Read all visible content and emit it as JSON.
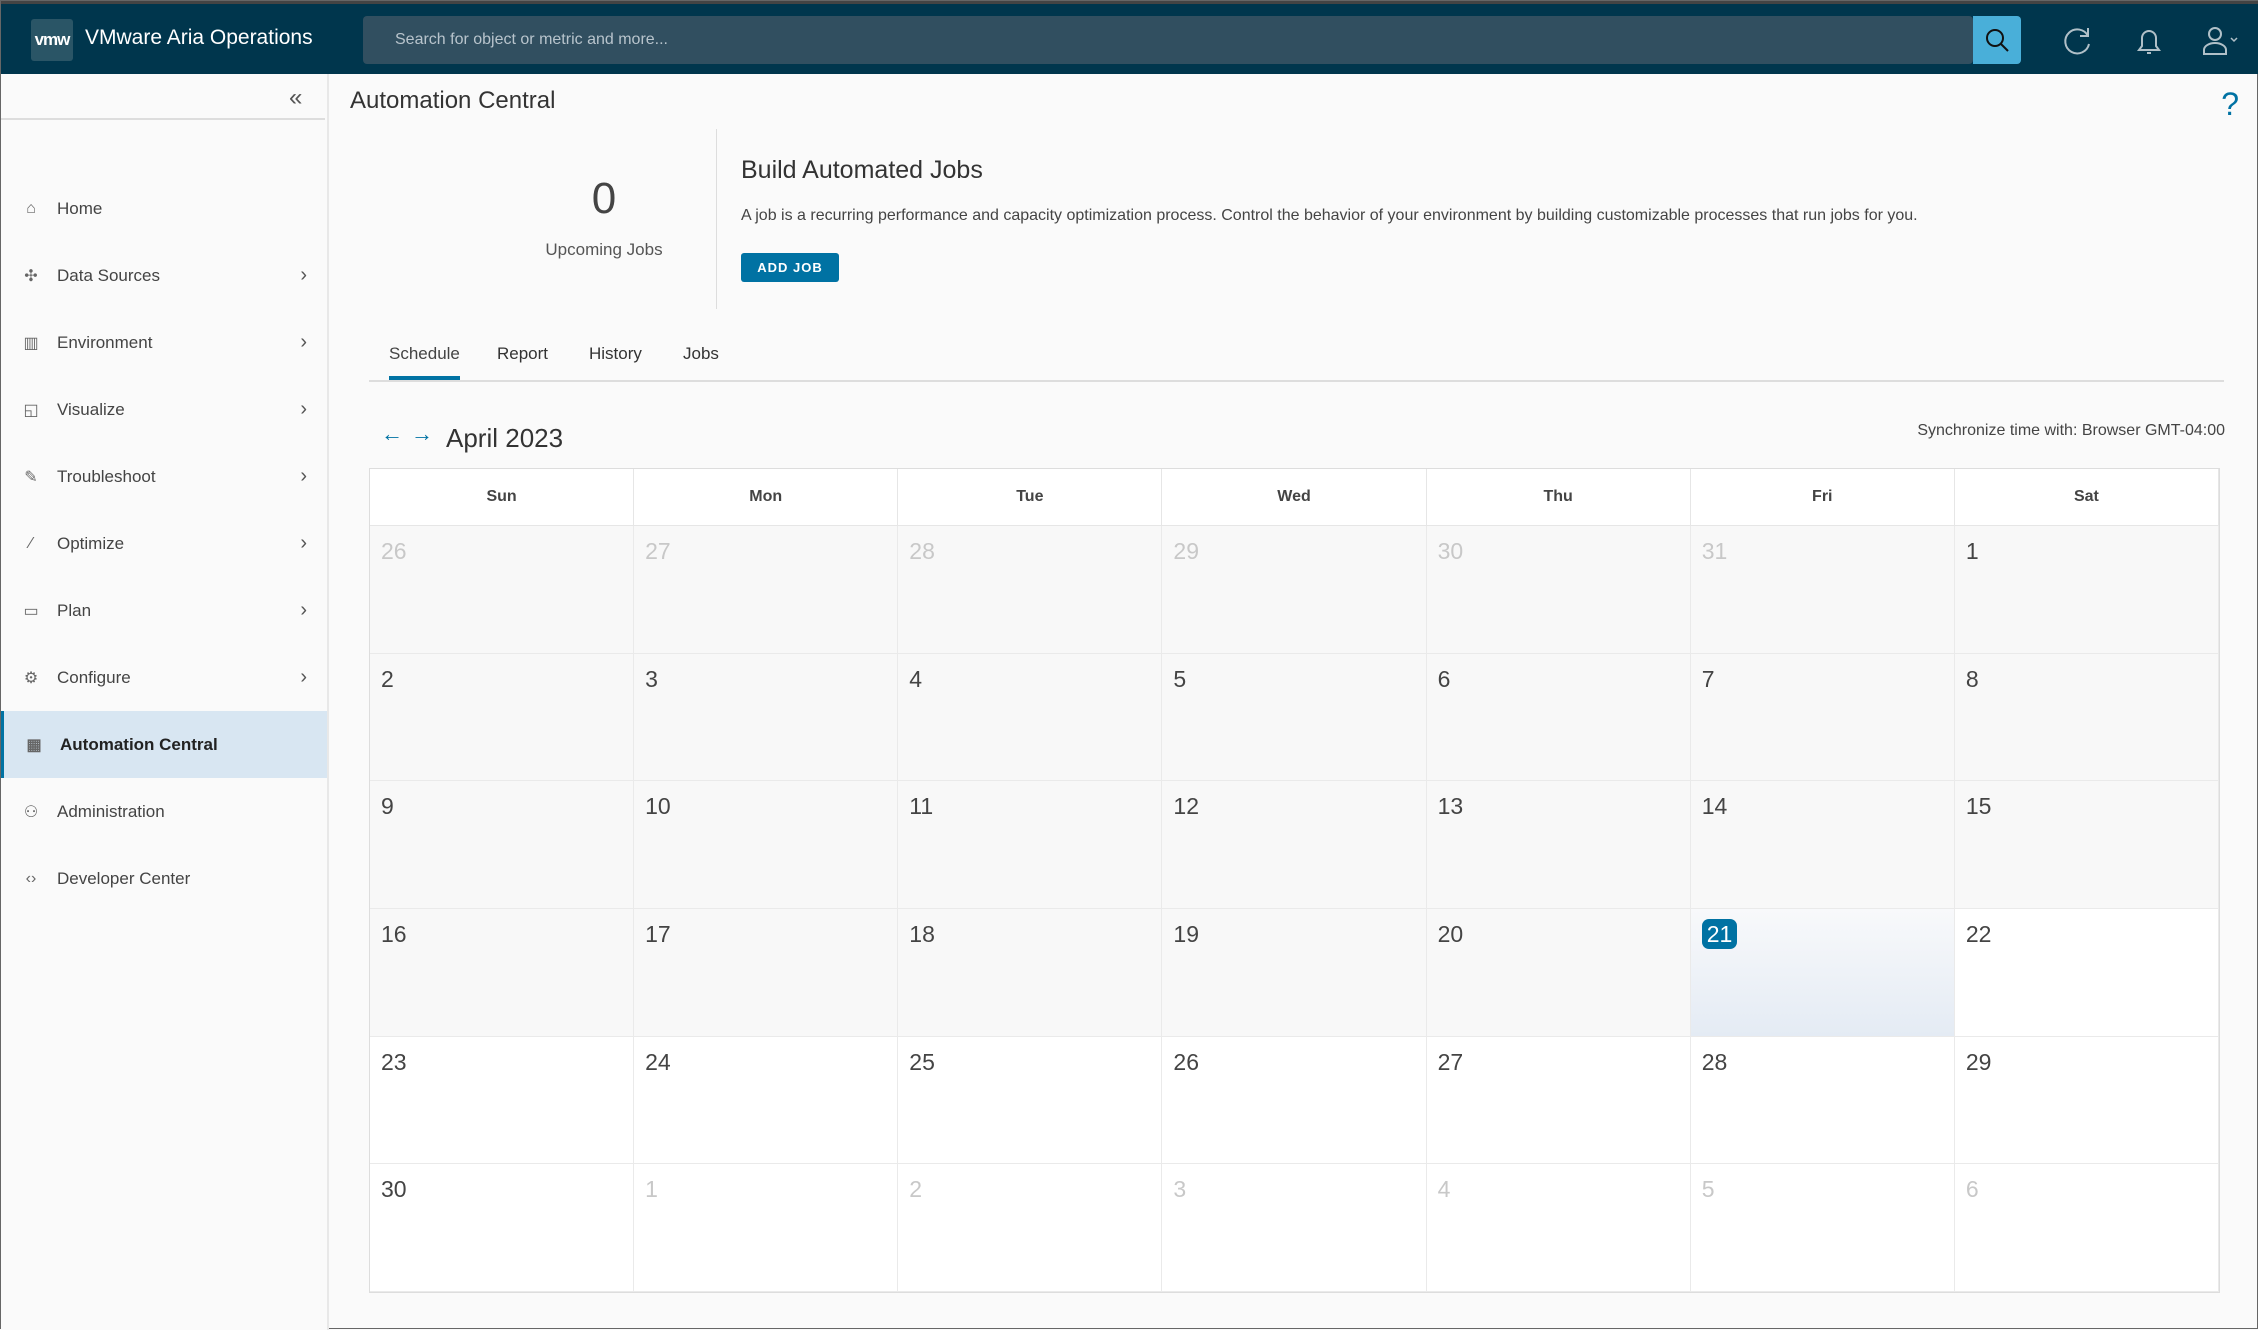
{
  "header": {
    "logo": "vmw",
    "title": "VMware Aria Operations",
    "search_placeholder": "Search for object or metric and more...",
    "icons": [
      "search-icon",
      "refresh-icon",
      "bell-icon",
      "user-icon"
    ]
  },
  "sidebar": {
    "items": [
      {
        "label": "Home",
        "icon": "home-icon",
        "chevron": false
      },
      {
        "label": "Data Sources",
        "icon": "puzzle-icon",
        "chevron": true
      },
      {
        "label": "Environment",
        "icon": "books-icon",
        "chevron": true
      },
      {
        "label": "Visualize",
        "icon": "chart-icon",
        "chevron": true
      },
      {
        "label": "Troubleshoot",
        "icon": "wrench-icon",
        "chevron": true
      },
      {
        "label": "Optimize",
        "icon": "wand-icon",
        "chevron": true
      },
      {
        "label": "Plan",
        "icon": "briefcase-icon",
        "chevron": true
      },
      {
        "label": "Configure",
        "icon": "gear-icon",
        "chevron": true
      },
      {
        "label": "Automation Central",
        "icon": "calendar-icon",
        "chevron": false,
        "active": true
      },
      {
        "label": "Administration",
        "icon": "admin-icon",
        "chevron": false
      },
      {
        "label": "Developer Center",
        "icon": "code-icon",
        "chevron": false
      }
    ]
  },
  "page": {
    "title": "Automation Central",
    "help": "?",
    "upcoming_count": "0",
    "upcoming_label": "Upcoming Jobs",
    "build_title": "Build Automated Jobs",
    "build_desc": "A job is a recurring performance and capacity optimization process. Control the behavior of your environment by building customizable processes that run jobs for you.",
    "add_job": "ADD JOB"
  },
  "tabs": [
    "Schedule",
    "Report",
    "History",
    "Jobs"
  ],
  "calendar": {
    "month": "April 2023",
    "sync": "Synchronize time with: Browser GMT-04:00",
    "days": [
      "Sun",
      "Mon",
      "Tue",
      "Wed",
      "Thu",
      "Fri",
      "Sat"
    ],
    "weeks": [
      [
        "26",
        "27",
        "28",
        "29",
        "30",
        "31",
        "1"
      ],
      [
        "2",
        "3",
        "4",
        "5",
        "6",
        "7",
        "8"
      ],
      [
        "9",
        "10",
        "11",
        "12",
        "13",
        "14",
        "15"
      ],
      [
        "16",
        "17",
        "18",
        "19",
        "20",
        "21",
        "22"
      ],
      [
        "23",
        "24",
        "25",
        "26",
        "27",
        "28",
        "29"
      ],
      [
        "30",
        "1",
        "2",
        "3",
        "4",
        "5",
        "6"
      ]
    ],
    "today": "21"
  },
  "colors": {
    "header": "#00364d",
    "accent": "#0072a3",
    "search_button": "#49afd9"
  }
}
